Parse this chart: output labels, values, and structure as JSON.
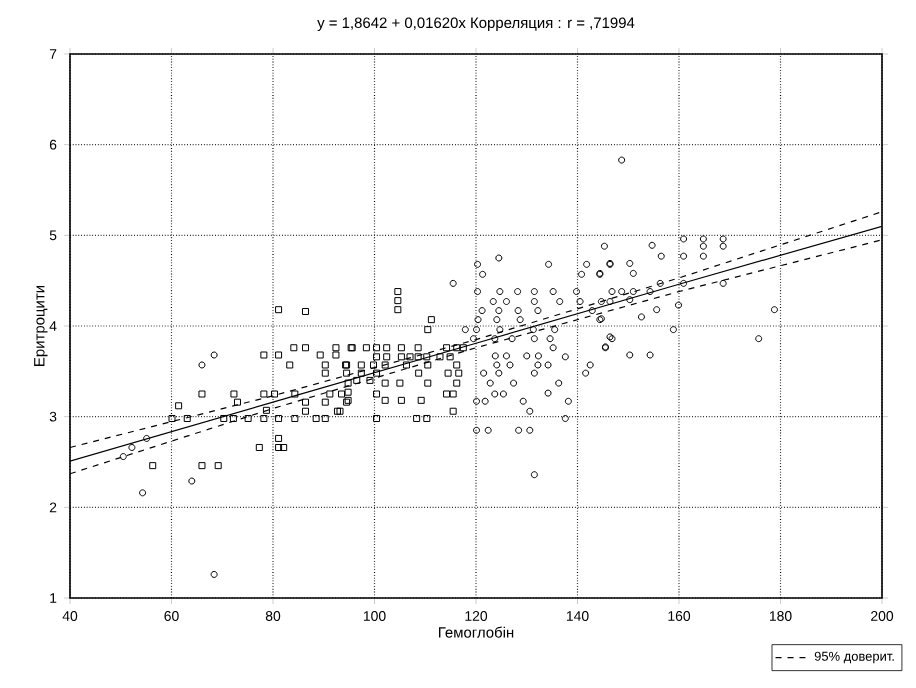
{
  "chart_data": {
    "type": "scatter",
    "title": "y = 1,8642 + 0,01620x  Корреляция : r = ,71994",
    "xlabel": "Гемоглобін",
    "ylabel": "Еритроцити",
    "xlim": [
      40,
      200
    ],
    "ylim": [
      1,
      7
    ],
    "xticks": [
      40,
      60,
      80,
      100,
      120,
      140,
      160,
      180,
      200
    ],
    "yticks": [
      1,
      2,
      3,
      4,
      5,
      6,
      7
    ],
    "grid": true,
    "legend": "bottom right",
    "series": [
      {
        "marker": "square",
        "color": "#000000",
        "x": [
          81.1,
          86.4,
          84.1,
          86.4,
          92.4,
          95.4,
          78.2,
          81.1,
          89.3,
          92.4,
          83.3,
          90.3,
          94.3,
          90.3,
          66.0,
          72.3,
          78.2,
          80.3,
          84.3,
          91.2,
          93.5,
          73.0,
          61.4,
          86.4,
          90.3,
          94.5,
          78.7,
          60.1,
          63.1,
          70.3,
          72.2,
          75.1,
          78.2,
          81.1,
          84.3,
          88.5,
          90.3,
          86.4,
          92.7,
          81.1,
          81.1,
          82.1,
          77.3,
          56.3,
          66.0,
          69.2,
          104.6,
          104.6,
          104.6,
          111.2,
          110.5,
          95.6,
          98.4,
          100.4,
          102.4,
          105.3,
          108.6,
          100.4,
          102.4,
          105.3,
          108.6,
          107.0,
          110.3,
          112.9,
          114.9,
          114.2,
          116.2,
          117.5,
          94.5,
          97.4,
          99.8,
          102.1,
          106.3,
          110.5,
          116.2,
          94.5,
          97.4,
          100.4,
          108.7,
          114.5,
          116.6,
          96.5,
          99.1,
          94.8,
          102.1,
          105.0,
          110.5,
          116.2,
          94.8,
          94.8,
          93.2,
          100.4,
          114.2,
          115.5,
          102.1,
          105.3,
          109.2,
          100.4,
          108.3,
          110.3,
          115.5
        ],
        "values": [
          4.18,
          4.16,
          3.76,
          3.76,
          3.76,
          3.76,
          3.68,
          3.68,
          3.68,
          3.68,
          3.57,
          3.57,
          3.57,
          3.48,
          3.25,
          3.25,
          3.25,
          3.25,
          3.25,
          3.25,
          3.25,
          3.16,
          3.12,
          3.16,
          3.16,
          3.16,
          3.07,
          2.98,
          2.98,
          2.98,
          2.98,
          2.98,
          2.98,
          2.98,
          2.98,
          2.98,
          2.98,
          3.06,
          3.06,
          2.76,
          2.66,
          2.66,
          2.66,
          2.46,
          2.46,
          2.46,
          4.38,
          4.28,
          4.18,
          4.07,
          3.96,
          3.76,
          3.76,
          3.76,
          3.76,
          3.76,
          3.76,
          3.66,
          3.66,
          3.66,
          3.66,
          3.66,
          3.66,
          3.66,
          3.66,
          3.76,
          3.76,
          3.76,
          3.57,
          3.57,
          3.57,
          3.57,
          3.57,
          3.57,
          3.57,
          3.48,
          3.48,
          3.48,
          3.48,
          3.48,
          3.48,
          3.4,
          3.4,
          3.37,
          3.37,
          3.37,
          3.37,
          3.37,
          3.27,
          3.18,
          3.06,
          3.25,
          3.25,
          3.25,
          3.18,
          3.18,
          3.18,
          2.98,
          2.98,
          2.98,
          3.06
        ]
      },
      {
        "marker": "circle",
        "color": "#000000",
        "x": [
          68.4,
          66.0,
          55.1,
          52.2,
          50.5,
          64.0,
          54.3,
          68.4,
          145.3,
          124.5,
          120.3,
          121.3,
          134.3,
          115.5,
          141.8,
          146.4,
          140.8,
          144.4,
          120.3,
          124.7,
          128.2,
          131.5,
          135.2,
          139.8,
          123.4,
          126.0,
          131.5,
          136.5,
          140.5,
          144.7,
          146.4,
          121.2,
          124.5,
          128.3,
          132.2,
          142.9,
          120.4,
          124.1,
          128.7,
          144.4,
          117.9,
          120.1,
          124.7,
          131.3,
          135.5,
          119.5,
          123.7,
          127.1,
          131.5,
          134.6,
          146.8,
          135.2,
          137.6,
          145.5,
          123.8,
          126.0,
          130.0,
          132.3,
          124.1,
          126.7,
          132.2,
          134.2,
          142.5,
          121.5,
          124.5,
          131.5,
          141.6,
          122.8,
          127.4,
          136.3,
          123.7,
          125.4,
          134.2,
          120.1,
          121.8,
          129.3,
          138.2,
          130.6,
          137.6,
          120.1,
          122.4,
          128.4,
          130.6,
          131.5,
          148.7,
          154.7,
          160.9,
          164.8,
          168.7,
          164.8,
          168.7,
          156.5,
          160.9,
          164.8,
          146.4,
          150.3,
          144.4,
          151.0,
          156.3,
          160.9,
          168.7,
          146.8,
          148.7,
          151.0,
          154.3,
          150.3,
          159.9,
          152.6,
          155.6,
          144.7,
          178.8,
          158.9,
          175.7,
          146.4,
          145.5,
          150.3,
          154.3
        ],
        "values": [
          3.68,
          3.57,
          2.76,
          2.66,
          2.56,
          2.29,
          2.16,
          1.26,
          4.88,
          4.75,
          4.68,
          4.57,
          4.68,
          4.47,
          4.68,
          4.68,
          4.57,
          4.57,
          4.38,
          4.38,
          4.38,
          4.38,
          4.38,
          4.38,
          4.27,
          4.27,
          4.27,
          4.27,
          4.27,
          4.27,
          4.27,
          4.17,
          4.17,
          4.17,
          4.17,
          4.17,
          4.07,
          4.07,
          4.07,
          4.07,
          3.96,
          3.96,
          3.96,
          3.96,
          3.96,
          3.86,
          3.86,
          3.86,
          3.86,
          3.86,
          3.86,
          3.76,
          3.66,
          3.76,
          3.67,
          3.67,
          3.67,
          3.67,
          3.57,
          3.57,
          3.57,
          3.57,
          3.57,
          3.48,
          3.48,
          3.48,
          3.48,
          3.37,
          3.37,
          3.37,
          3.25,
          3.25,
          3.26,
          3.17,
          3.17,
          3.17,
          3.17,
          3.06,
          2.98,
          2.85,
          2.85,
          2.85,
          2.85,
          2.36,
          5.83,
          4.89,
          4.96,
          4.96,
          4.96,
          4.88,
          4.88,
          4.77,
          4.77,
          4.77,
          4.69,
          4.69,
          4.58,
          4.58,
          4.47,
          4.47,
          4.47,
          4.38,
          4.38,
          4.38,
          4.38,
          4.29,
          4.23,
          4.1,
          4.18,
          4.08,
          4.18,
          3.96,
          3.86,
          3.88,
          3.77,
          3.68,
          3.68
        ]
      },
      {
        "type": "line",
        "line_style": "solid",
        "marker": "none",
        "color": "#000000",
        "x": [
          40,
          80,
          120,
          160,
          200
        ],
        "values": [
          2.51,
          3.16,
          3.81,
          4.46,
          5.1
        ]
      },
      {
        "type": "line",
        "line_style": "dashed",
        "marker": "none",
        "color": "#000000",
        "name": "95% довеpит.",
        "x": [
          40,
          80,
          120,
          160,
          200
        ],
        "values": [
          2.66,
          3.23,
          3.85,
          4.53,
          5.26
        ]
      },
      {
        "type": "line",
        "line_style": "dashed",
        "marker": "none",
        "color": "#000000",
        "x": [
          40,
          80,
          120,
          160,
          200
        ],
        "values": [
          2.37,
          3.09,
          3.76,
          4.38,
          4.95
        ]
      }
    ]
  }
}
